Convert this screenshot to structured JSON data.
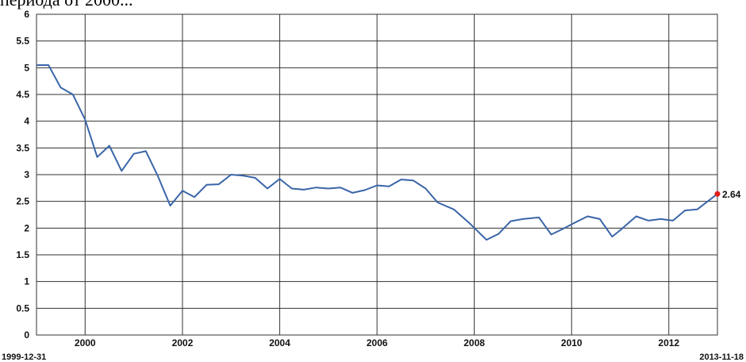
{
  "header": {
    "cut_text": "периода от 2000..."
  },
  "chart_data": {
    "type": "line",
    "title": "",
    "xlabel": "",
    "ylabel": "",
    "x_range": [
      "1999-01-01",
      "2012-12-31"
    ],
    "ylim": [
      0,
      6
    ],
    "y_ticks": [
      "0",
      "0.5",
      "1",
      "1.5",
      "2",
      "2.5",
      "3",
      "3.5",
      "4",
      "4.5",
      "5",
      "5.5",
      "6"
    ],
    "x_ticks": [
      {
        "label": "2000",
        "date": "2000-01-01"
      },
      {
        "label": "2002",
        "date": "2002-01-01"
      },
      {
        "label": "2004",
        "date": "2004-01-01"
      },
      {
        "label": "2006",
        "date": "2006-01-01"
      },
      {
        "label": "2008",
        "date": "2008-01-01"
      },
      {
        "label": "2010",
        "date": "2010-01-01"
      },
      {
        "label": "2012",
        "date": "2012-01-01"
      }
    ],
    "start_date_label": "1999-12-31",
    "end_date_label": "2013-11-18",
    "grid": true,
    "line_color": "#3a65a8",
    "marker_color": "#e0201b",
    "last_value_label": "2.64",
    "series": [
      {
        "x": [
          "1999-01-01",
          "1999-04-01",
          "1999-07-01",
          "1999-10-01",
          "2000-01-01",
          "2000-04-01",
          "2000-07-01",
          "2000-10-01",
          "2001-01-01",
          "2001-04-01",
          "2001-07-01",
          "2001-10-01",
          "2002-01-01",
          "2002-04-01",
          "2002-07-01",
          "2002-10-01",
          "2003-01-01",
          "2003-04-01",
          "2003-07-01",
          "2003-10-01",
          "2004-01-01",
          "2004-04-01",
          "2004-07-01",
          "2004-10-01",
          "2005-01-01",
          "2005-04-01",
          "2005-07-01",
          "2005-10-01",
          "2006-01-01",
          "2006-04-01",
          "2006-07-01",
          "2006-10-01",
          "2007-01-01",
          "2007-04-01",
          "2007-08-01",
          "2007-12-01",
          "2008-04-01",
          "2008-07-01",
          "2008-10-01",
          "2009-01-01",
          "2009-05-01",
          "2009-08-01",
          "2009-11-01",
          "2010-02-01",
          "2010-05-01",
          "2010-08-01",
          "2010-11-01",
          "2011-01-01",
          "2011-05-01",
          "2011-08-01",
          "2011-11-01",
          "2012-02-01",
          "2012-05-01",
          "2012-08-01",
          "2012-12-31"
        ],
        "y": [
          5.05,
          5.05,
          4.63,
          4.5,
          4.03,
          3.33,
          3.54,
          3.07,
          3.39,
          3.44,
          2.97,
          2.42,
          2.7,
          2.58,
          2.81,
          2.82,
          3.0,
          2.98,
          2.94,
          2.74,
          2.92,
          2.74,
          2.72,
          2.76,
          2.74,
          2.76,
          2.66,
          2.71,
          2.8,
          2.78,
          2.91,
          2.89,
          2.74,
          2.48,
          2.35,
          2.08,
          1.78,
          1.89,
          2.13,
          2.17,
          2.2,
          1.88,
          1.99,
          2.11,
          2.22,
          2.17,
          1.84,
          1.96,
          2.22,
          2.14,
          2.17,
          2.14,
          2.33,
          2.35,
          2.64
        ]
      }
    ]
  }
}
